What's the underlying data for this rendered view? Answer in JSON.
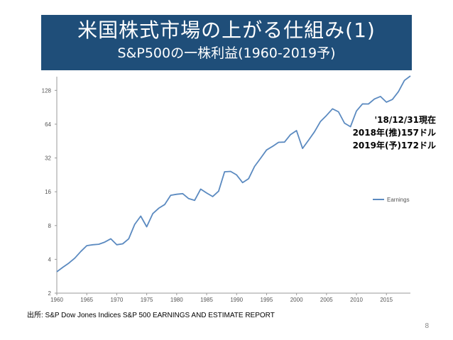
{
  "title": {
    "line1": "米国株式市場の上がる仕組み(1)",
    "line2": "S&P500の一株利益(1960-2019予)"
  },
  "annotation": {
    "lines": [
      "'18/12/31現在",
      "2018年(推)157ドル",
      "2019年(予)172ドル"
    ]
  },
  "source": "出所: S&P Dow Jones Indices S&P 500 EARNINGS AND ESTIMATE REPORT",
  "page_number": "8",
  "colors": {
    "title_bg": "#1f4e79",
    "line": "#5b8ac0",
    "axis": "#999999"
  },
  "chart_data": {
    "type": "line",
    "y_scale": "log2",
    "ylim": [
      2,
      160
    ],
    "xlim": [
      1960,
      2019
    ],
    "y_ticks": [
      2,
      4,
      8,
      16,
      32,
      64,
      128
    ],
    "x_ticks": [
      1960,
      1965,
      1970,
      1975,
      1980,
      1985,
      1990,
      1995,
      2000,
      2005,
      2010,
      2015
    ],
    "legend": {
      "placement": "right",
      "label": "Earnings"
    },
    "series": [
      {
        "name": "Earnings",
        "x": [
          1960,
          1961,
          1962,
          1963,
          1964,
          1965,
          1966,
          1967,
          1968,
          1969,
          1970,
          1971,
          1972,
          1973,
          1974,
          1975,
          1976,
          1977,
          1978,
          1979,
          1980,
          1981,
          1982,
          1983,
          1984,
          1985,
          1986,
          1987,
          1988,
          1989,
          1990,
          1991,
          1992,
          1993,
          1994,
          1995,
          1996,
          1997,
          1998,
          1999,
          2000,
          2001,
          2002,
          2003,
          2004,
          2005,
          2006,
          2007,
          2008,
          2009,
          2010,
          2011,
          2012,
          2013,
          2014,
          2015,
          2016,
          2017,
          2018,
          2019
        ],
        "values": [
          3.1,
          3.4,
          3.7,
          4.1,
          4.7,
          5.3,
          5.4,
          5.45,
          5.7,
          6.1,
          5.4,
          5.5,
          6.1,
          8.2,
          9.7,
          7.8,
          10.2,
          11.4,
          12.3,
          14.9,
          15.2,
          15.4,
          13.9,
          13.4,
          16.9,
          15.6,
          14.5,
          16.2,
          24.1,
          24.3,
          22.6,
          19.3,
          20.9,
          26.9,
          31.8,
          37.7,
          40.6,
          44.1,
          44.3,
          51.7,
          56.1,
          38.9,
          46.0,
          54.7,
          67.7,
          76.5,
          87.7,
          82.5,
          65.4,
          60.8,
          83.8,
          97.0,
          96.8,
          107.3,
          113.0,
          100.5,
          106.3,
          124.5,
          157.0,
          172.0
        ]
      }
    ]
  }
}
